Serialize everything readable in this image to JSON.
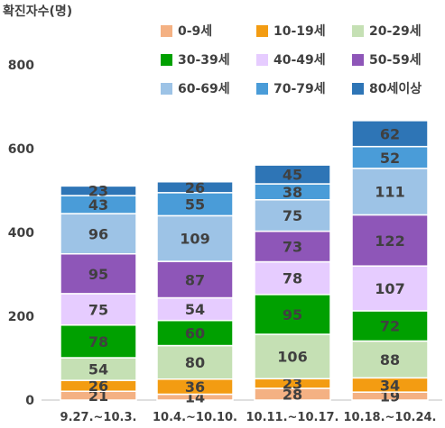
{
  "chart_data": {
    "type": "bar",
    "stacked": true,
    "ylabel": "확진자수(명)",
    "ylim": [
      0,
      800
    ],
    "yticks": [
      0,
      200,
      400,
      600,
      800
    ],
    "grid": false,
    "legend_position": "top-right",
    "categories": [
      "9.27.~10.3.",
      "10.4.~10.10.",
      "10.11.~10.17.",
      "10.18.~10.24."
    ],
    "series": [
      {
        "name": "0-9세",
        "color": "#F4B183",
        "values": [
          21,
          14,
          28,
          19
        ]
      },
      {
        "name": "10-19세",
        "color": "#F39C12",
        "values": [
          26,
          36,
          23,
          34
        ]
      },
      {
        "name": "20-29세",
        "color": "#C5E0B4",
        "values": [
          54,
          80,
          106,
          88
        ]
      },
      {
        "name": "30-39세",
        "color": "#00A000",
        "values": [
          78,
          60,
          95,
          72
        ]
      },
      {
        "name": "40-49세",
        "color": "#E6CCFF",
        "values": [
          75,
          54,
          78,
          107
        ]
      },
      {
        "name": "50-59세",
        "color": "#8E56B8",
        "values": [
          95,
          87,
          73,
          122
        ]
      },
      {
        "name": "60-69세",
        "color": "#9DC3E6",
        "values": [
          96,
          109,
          75,
          111
        ]
      },
      {
        "name": "70-79세",
        "color": "#4A9CD8",
        "values": [
          43,
          55,
          38,
          52
        ]
      },
      {
        "name": "80세이상",
        "color": "#2E75B6",
        "values": [
          23,
          26,
          45,
          62
        ]
      }
    ]
  }
}
